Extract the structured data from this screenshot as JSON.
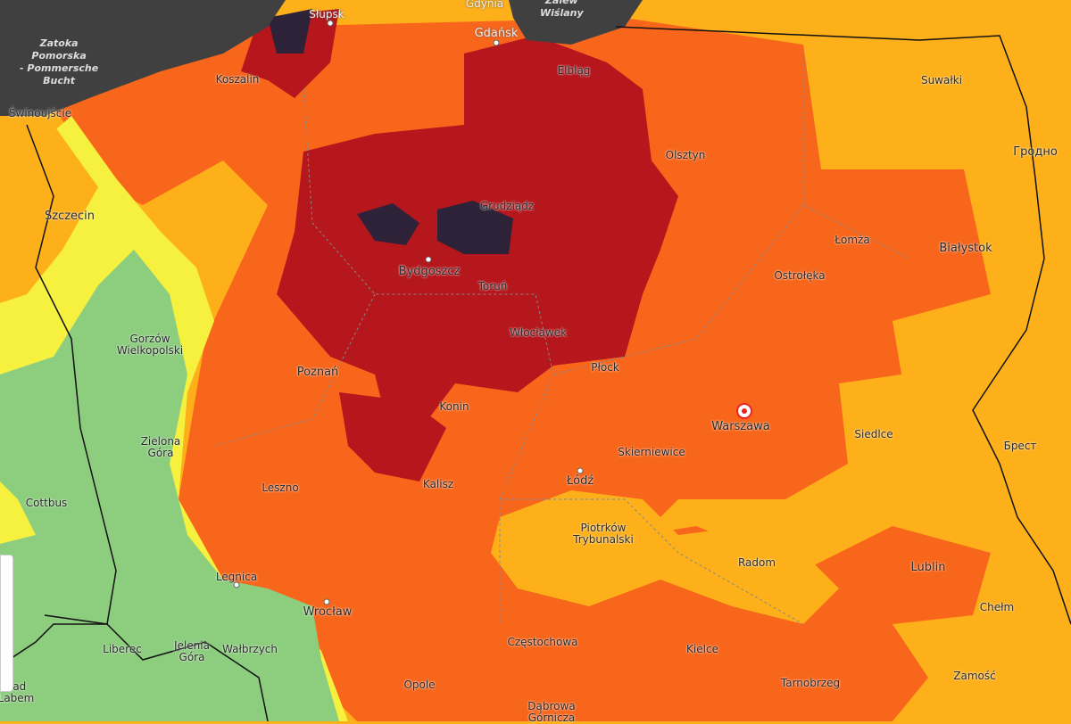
{
  "map": {
    "colors": {
      "sea": "#404040",
      "green": "#8ccd7e",
      "yellow": "#f6f03e",
      "light_orange": "#fdb01a",
      "orange": "#f8661c",
      "red": "#b5171c",
      "dark": "#2e2238"
    },
    "sea_labels": [
      "Zatoka\nPomorska\n- Pommersche\nBucht",
      "Zalew\nWiślany"
    ],
    "cities": [
      {
        "name": "Słupsk"
      },
      {
        "name": "Gdynia"
      },
      {
        "name": "Gdańsk"
      },
      {
        "name": "Koszalin"
      },
      {
        "name": "Elbląg"
      },
      {
        "name": "Świnoujście"
      },
      {
        "name": "Suwałki"
      },
      {
        "name": "Olsztyn"
      },
      {
        "name": "Гродно"
      },
      {
        "name": "Szczecin"
      },
      {
        "name": "Grudziądz"
      },
      {
        "name": "Łomża"
      },
      {
        "name": "Białystok"
      },
      {
        "name": "Bydgoszcz"
      },
      {
        "name": "Toruń"
      },
      {
        "name": "Ostrołęka"
      },
      {
        "name": "Gorzów\nWielkopolski"
      },
      {
        "name": "Włocławek"
      },
      {
        "name": "Płock"
      },
      {
        "name": "Poznań"
      },
      {
        "name": "Konin"
      },
      {
        "name": "Warszawa"
      },
      {
        "name": "Zielona\nGóra"
      },
      {
        "name": "Skierniewice"
      },
      {
        "name": "Siedlce"
      },
      {
        "name": "Брест"
      },
      {
        "name": "Cottbus"
      },
      {
        "name": "Leszno"
      },
      {
        "name": "Kalisz"
      },
      {
        "name": "Łódź"
      },
      {
        "name": "Piotrków\nTrybunalski"
      },
      {
        "name": "Radom"
      },
      {
        "name": "Lublin"
      },
      {
        "name": "Legnica"
      },
      {
        "name": "Chełm"
      },
      {
        "name": "Wrocław"
      },
      {
        "name": "Liberec"
      },
      {
        "name": "Jelenia\nGóra"
      },
      {
        "name": "Wałbrzych"
      },
      {
        "name": "Częstochowa"
      },
      {
        "name": "Kielce"
      },
      {
        "name": "Zamość"
      },
      {
        "name": "nad\nLabem"
      },
      {
        "name": "Opole"
      },
      {
        "name": "Tarnobrzeg"
      },
      {
        "name": "Dąbrowa\nGórnicza"
      }
    ]
  }
}
